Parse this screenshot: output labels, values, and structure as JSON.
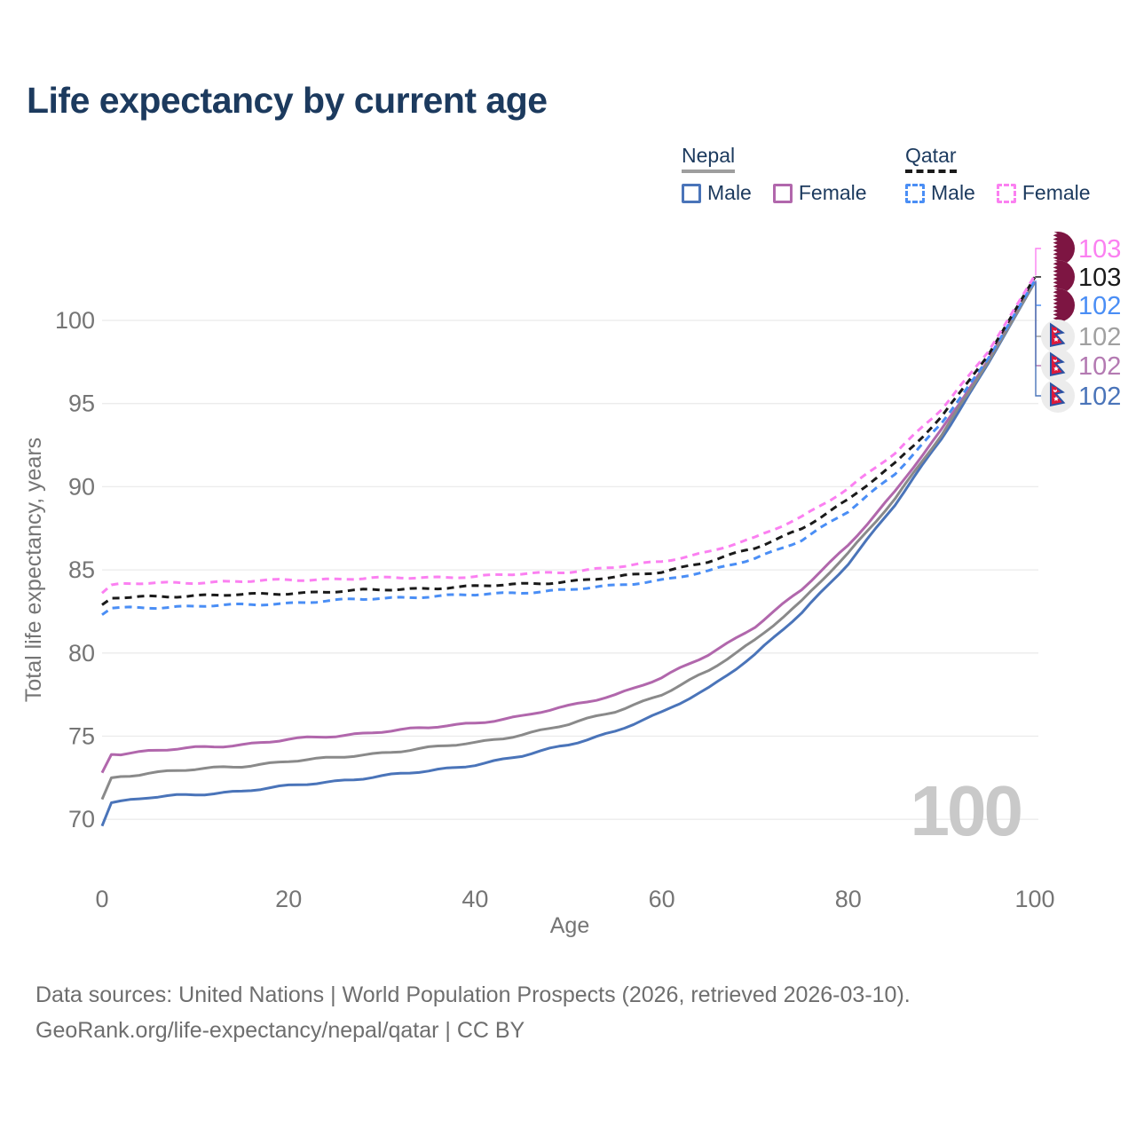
{
  "title": "Life expectancy by current age",
  "colors": {
    "title": "#1c3a5e",
    "axis_text": "#757575",
    "grid": "#ebebeb",
    "watermark": "#c9c9c9",
    "footer_text": "#6e6e6e"
  },
  "legend": {
    "groups": [
      {
        "country": "Nepal",
        "line_style": "solid",
        "underline_color": "#9e9e9e",
        "items": [
          {
            "label": "Male",
            "color": "#4a74b9"
          },
          {
            "label": "Female",
            "color": "#b167ac"
          }
        ]
      },
      {
        "country": "Qatar",
        "line_style": "dashed",
        "underline_color": "#1a1a1a",
        "items": [
          {
            "label": "Male",
            "color": "#4a8ef5"
          },
          {
            "label": "Female",
            "color": "#fb80f1"
          }
        ]
      }
    ]
  },
  "chart_data": {
    "type": "line",
    "title": "Life expectancy by current age",
    "xlabel": "Age",
    "ylabel": "Total life expectancy, years",
    "watermark": "100",
    "grid": "horizontal",
    "x_ticks": [
      0,
      20,
      40,
      60,
      80,
      100
    ],
    "y_ticks": [
      70,
      75,
      80,
      85,
      90,
      95,
      100
    ],
    "xlim": [
      0,
      100
    ],
    "ylim": [
      69.5,
      103.5
    ],
    "x": [
      0,
      1,
      5,
      10,
      15,
      20,
      25,
      30,
      35,
      40,
      45,
      50,
      55,
      60,
      65,
      70,
      75,
      80,
      85,
      90,
      95,
      100
    ],
    "series": [
      {
        "name": "Qatar Female",
        "country": "Qatar",
        "sex": "Female",
        "flag": "qatar-flag-icon",
        "color": "#fb80f1",
        "label_color": "#fb80f1",
        "dash": true,
        "end_label": "103",
        "values": [
          83.6,
          84.1,
          84.2,
          84.25,
          84.3,
          84.4,
          84.45,
          84.5,
          84.55,
          84.6,
          84.75,
          84.9,
          85.15,
          85.5,
          86.1,
          86.9,
          88.2,
          89.9,
          92.0,
          94.7,
          98.1,
          102.7
        ]
      },
      {
        "name": "Qatar",
        "country": "Qatar",
        "sex": "Both",
        "flag": "qatar-flag-icon",
        "color": "#1a1a1a",
        "label_color": "#1a1a1a",
        "dash": true,
        "end_label": "103",
        "values": [
          82.9,
          83.3,
          83.4,
          83.45,
          83.5,
          83.6,
          83.7,
          83.8,
          83.9,
          84.0,
          84.15,
          84.3,
          84.55,
          84.9,
          85.5,
          86.3,
          87.5,
          89.2,
          91.4,
          94.2,
          97.9,
          102.6
        ]
      },
      {
        "name": "Qatar Male",
        "country": "Qatar",
        "sex": "Male",
        "flag": "qatar-flag-icon",
        "color": "#4a8ef5",
        "label_color": "#4a8ef5",
        "dash": true,
        "end_label": "102",
        "values": [
          82.3,
          82.7,
          82.75,
          82.8,
          82.9,
          83.0,
          83.15,
          83.3,
          83.4,
          83.5,
          83.65,
          83.8,
          84.05,
          84.4,
          84.9,
          85.7,
          86.8,
          88.5,
          90.8,
          93.8,
          97.7,
          102.4
        ]
      },
      {
        "name": "Nepal",
        "country": "Nepal",
        "sex": "Both",
        "flag": "nepal-flag-icon",
        "color": "#8a8a8a",
        "label_color": "#a0a0a0",
        "dash": false,
        "end_label": "102",
        "values": [
          71.2,
          72.5,
          72.8,
          73.0,
          73.2,
          73.5,
          73.7,
          74.0,
          74.3,
          74.6,
          75.1,
          75.7,
          76.5,
          77.5,
          78.9,
          80.8,
          83.1,
          86.0,
          89.3,
          93.1,
          97.5,
          102.3
        ]
      },
      {
        "name": "Nepal Female",
        "country": "Nepal",
        "sex": "Female",
        "flag": "nepal-flag-icon",
        "color": "#b167ac",
        "label_color": "#b47ab2",
        "dash": false,
        "end_label": "102",
        "values": [
          72.8,
          73.9,
          74.1,
          74.3,
          74.5,
          74.8,
          75.0,
          75.3,
          75.5,
          75.8,
          76.2,
          76.8,
          77.5,
          78.5,
          79.9,
          81.6,
          83.8,
          86.5,
          89.7,
          93.4,
          97.6,
          102.35
        ]
      },
      {
        "name": "Nepal Male",
        "country": "Nepal",
        "sex": "Male",
        "flag": "nepal-flag-icon",
        "color": "#4a74b9",
        "label_color": "#4a74b9",
        "dash": false,
        "end_label": "102",
        "values": [
          69.6,
          71.0,
          71.3,
          71.5,
          71.7,
          72.0,
          72.3,
          72.6,
          72.9,
          73.3,
          73.8,
          74.5,
          75.3,
          76.4,
          77.9,
          79.9,
          82.4,
          85.4,
          88.9,
          92.9,
          97.4,
          102.3
        ]
      }
    ]
  },
  "footer": {
    "line1": "Data sources: United Nations | World Population Prospects (2026, retrieved 2026-03-10).",
    "line2": "GeoRank.org/life-expectancy/nepal/qatar | CC BY"
  }
}
